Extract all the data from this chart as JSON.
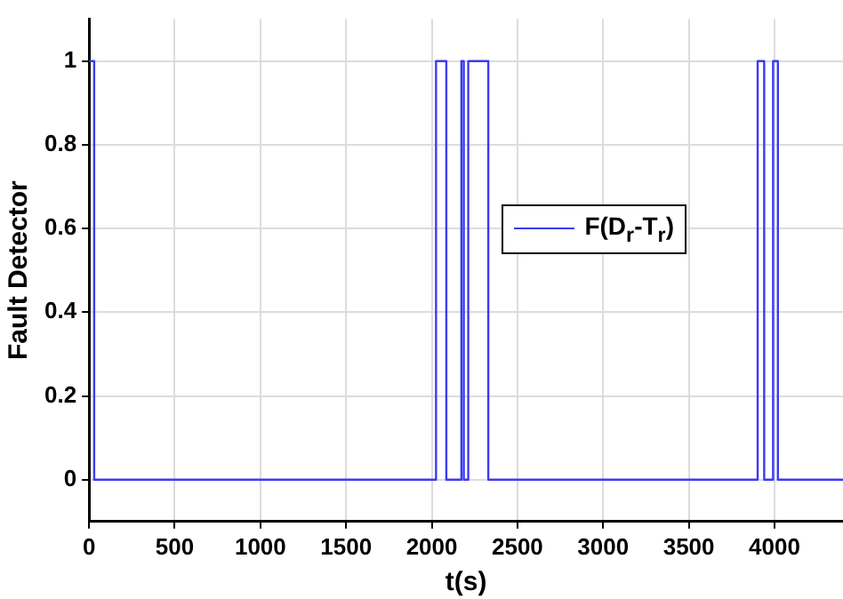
{
  "chart_data": {
    "type": "step",
    "xlabel": "t(s)",
    "ylabel": "Fault Detector",
    "x": [
      0,
      30,
      2025,
      2085,
      2173,
      2187,
      2213,
      2330,
      3902,
      3940,
      3992,
      4020,
      4400
    ],
    "series": [
      {
        "name": "F(D$_{r}$-T$_{r}$)",
        "color": "#3b3bf0",
        "values": [
          1,
          0,
          1,
          0,
          1,
          0,
          1,
          0,
          1,
          0,
          1,
          0,
          0
        ]
      }
    ],
    "xlim": [
      0,
      4400
    ],
    "xticks": [
      0,
      500,
      1000,
      1500,
      2000,
      2500,
      3000,
      3500,
      4000
    ],
    "ylim": [
      -0.1,
      1.1
    ],
    "yticks": [
      0,
      0.2,
      0.4,
      0.6,
      0.8,
      1
    ],
    "grid": true,
    "legend": "right"
  }
}
